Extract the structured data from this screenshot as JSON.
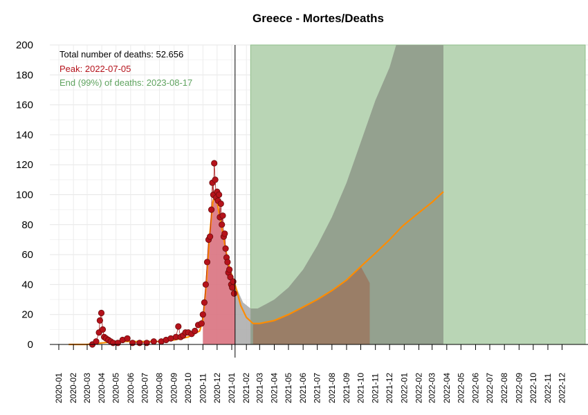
{
  "chart_data": {
    "type": "area",
    "title": "Greece - Mortes/Deaths",
    "xlabel": "",
    "ylabel": "",
    "ylim": [
      0,
      200
    ],
    "yticks": [
      0,
      20,
      40,
      60,
      80,
      100,
      120,
      140,
      160,
      180,
      200
    ],
    "xlim": [
      "2020-01-01",
      "2022-12-31"
    ],
    "xtick_labels": [
      "2020-01",
      "2020-02",
      "2020-03",
      "2020-04",
      "2020-05",
      "2020-06",
      "2020-07",
      "2020-08",
      "2020-09",
      "2020-10",
      "2020-11",
      "2020-12",
      "2021-01",
      "2021-02",
      "2021-03",
      "2021-04",
      "2021-05",
      "2021-06",
      "2021-07",
      "2021-08",
      "2021-09",
      "2021-10",
      "2021-11",
      "2021-12",
      "2022-01",
      "2022-02",
      "2022-03",
      "2022-04",
      "2022-05",
      "2022-06",
      "2022-07",
      "2022-08",
      "2022-09",
      "2022-10",
      "2022-11",
      "2022-12"
    ],
    "grid": true,
    "annotations": {
      "total": "Total number of deaths: 52.656",
      "peak": "Peak: 2022-07-05",
      "end": "End (99%) of deaths: 2023-08-17"
    },
    "today_line": "2021-01-08",
    "observed_points": [
      [
        "2020-03-12",
        0
      ],
      [
        "2020-03-20",
        2
      ],
      [
        "2020-03-26",
        8
      ],
      [
        "2020-03-28",
        16
      ],
      [
        "2020-03-31",
        21
      ],
      [
        "2020-04-03",
        10
      ],
      [
        "2020-04-06",
        5
      ],
      [
        "2020-04-10",
        4
      ],
      [
        "2020-04-15",
        3
      ],
      [
        "2020-04-20",
        2
      ],
      [
        "2020-04-25",
        1
      ],
      [
        "2020-05-05",
        1
      ],
      [
        "2020-05-15",
        3
      ],
      [
        "2020-05-25",
        4
      ],
      [
        "2020-06-05",
        1
      ],
      [
        "2020-06-20",
        1
      ],
      [
        "2020-07-05",
        1
      ],
      [
        "2020-07-20",
        2
      ],
      [
        "2020-08-05",
        2
      ],
      [
        "2020-08-15",
        3
      ],
      [
        "2020-08-25",
        4
      ],
      [
        "2020-09-05",
        5
      ],
      [
        "2020-09-10",
        12
      ],
      [
        "2020-09-15",
        5
      ],
      [
        "2020-09-20",
        6
      ],
      [
        "2020-09-25",
        8
      ],
      [
        "2020-10-01",
        8
      ],
      [
        "2020-10-08",
        7
      ],
      [
        "2020-10-15",
        9
      ],
      [
        "2020-10-22",
        13
      ],
      [
        "2020-10-29",
        14
      ],
      [
        "2020-11-01",
        20
      ],
      [
        "2020-11-04",
        28
      ],
      [
        "2020-11-07",
        40
      ],
      [
        "2020-11-10",
        55
      ],
      [
        "2020-11-13",
        70
      ],
      [
        "2020-11-16",
        72
      ],
      [
        "2020-11-19",
        90
      ],
      [
        "2020-11-21",
        108
      ],
      [
        "2020-11-23",
        100
      ],
      [
        "2020-11-25",
        121
      ],
      [
        "2020-11-27",
        110
      ],
      [
        "2020-11-29",
        98
      ],
      [
        "2020-12-01",
        102
      ],
      [
        "2020-12-03",
        96
      ],
      [
        "2020-12-05",
        100
      ],
      [
        "2020-12-07",
        85
      ],
      [
        "2020-12-09",
        94
      ],
      [
        "2020-12-11",
        80
      ],
      [
        "2020-12-13",
        86
      ],
      [
        "2020-12-15",
        72
      ],
      [
        "2020-12-17",
        74
      ],
      [
        "2020-12-19",
        64
      ],
      [
        "2020-12-21",
        58
      ],
      [
        "2020-12-23",
        55
      ],
      [
        "2020-12-25",
        48
      ],
      [
        "2020-12-27",
        50
      ],
      [
        "2020-12-29",
        45
      ],
      [
        "2020-12-31",
        40
      ],
      [
        "2021-01-02",
        38
      ],
      [
        "2021-01-04",
        42
      ],
      [
        "2021-01-06",
        34
      ]
    ],
    "observed_smooth": [
      [
        "2020-01-22",
        0
      ],
      [
        "2020-03-01",
        0
      ],
      [
        "2020-04-01",
        1
      ],
      [
        "2020-05-01",
        2
      ],
      [
        "2020-06-01",
        2
      ],
      [
        "2020-07-01",
        2
      ],
      [
        "2020-08-01",
        2
      ],
      [
        "2020-09-01",
        3
      ],
      [
        "2020-10-01",
        5
      ],
      [
        "2020-10-25",
        9
      ],
      [
        "2020-11-01",
        16
      ],
      [
        "2020-11-08",
        40
      ],
      [
        "2020-11-15",
        72
      ],
      [
        "2020-11-22",
        95
      ],
      [
        "2020-11-26",
        99
      ],
      [
        "2020-11-30",
        97
      ],
      [
        "2020-12-05",
        88
      ],
      [
        "2020-12-12",
        76
      ],
      [
        "2020-12-20",
        62
      ],
      [
        "2020-12-28",
        50
      ],
      [
        "2021-01-08",
        40
      ]
    ],
    "forecast_fitted": [
      [
        "2021-01-08",
        40
      ],
      [
        "2021-01-20",
        26
      ],
      [
        "2021-02-01",
        18
      ],
      [
        "2021-02-15",
        14
      ],
      [
        "2021-03-01",
        14
      ],
      [
        "2021-04-01",
        16
      ],
      [
        "2021-05-01",
        20
      ],
      [
        "2021-06-01",
        25
      ],
      [
        "2021-07-01",
        30
      ],
      [
        "2021-08-01",
        36
      ],
      [
        "2021-09-01",
        43
      ],
      [
        "2021-10-01",
        52
      ],
      [
        "2021-11-01",
        61
      ],
      [
        "2021-12-01",
        70
      ],
      [
        "2021-12-25",
        78
      ],
      [
        "2022-01-01",
        80
      ],
      [
        "2022-02-01",
        88
      ],
      [
        "2022-03-01",
        95
      ],
      [
        "2022-03-25",
        102
      ]
    ],
    "forecast_upper": [
      [
        "2021-01-08",
        40
      ],
      [
        "2021-01-25",
        28
      ],
      [
        "2021-02-10",
        24
      ],
      [
        "2021-02-25",
        24
      ],
      [
        "2021-03-15",
        27
      ],
      [
        "2021-04-01",
        30
      ],
      [
        "2021-05-01",
        38
      ],
      [
        "2021-06-01",
        50
      ],
      [
        "2021-07-01",
        66
      ],
      [
        "2021-08-01",
        85
      ],
      [
        "2021-09-01",
        108
      ],
      [
        "2021-10-01",
        135
      ],
      [
        "2021-11-01",
        163
      ],
      [
        "2021-12-01",
        185
      ],
      [
        "2021-12-15",
        200
      ],
      [
        "2022-03-25",
        200
      ]
    ],
    "series_colors": {
      "observed": "#d9727f",
      "observed_points": "#b5121b",
      "smooth": "#ff8c00",
      "forecast_area": "#8f9f8a",
      "forecast_upper": "#a9a9a9",
      "lower_band": "#9a7a63",
      "green_band": "#b9d5b5",
      "peak_text": "#b5121b",
      "end_text": "#5fa35f"
    }
  }
}
